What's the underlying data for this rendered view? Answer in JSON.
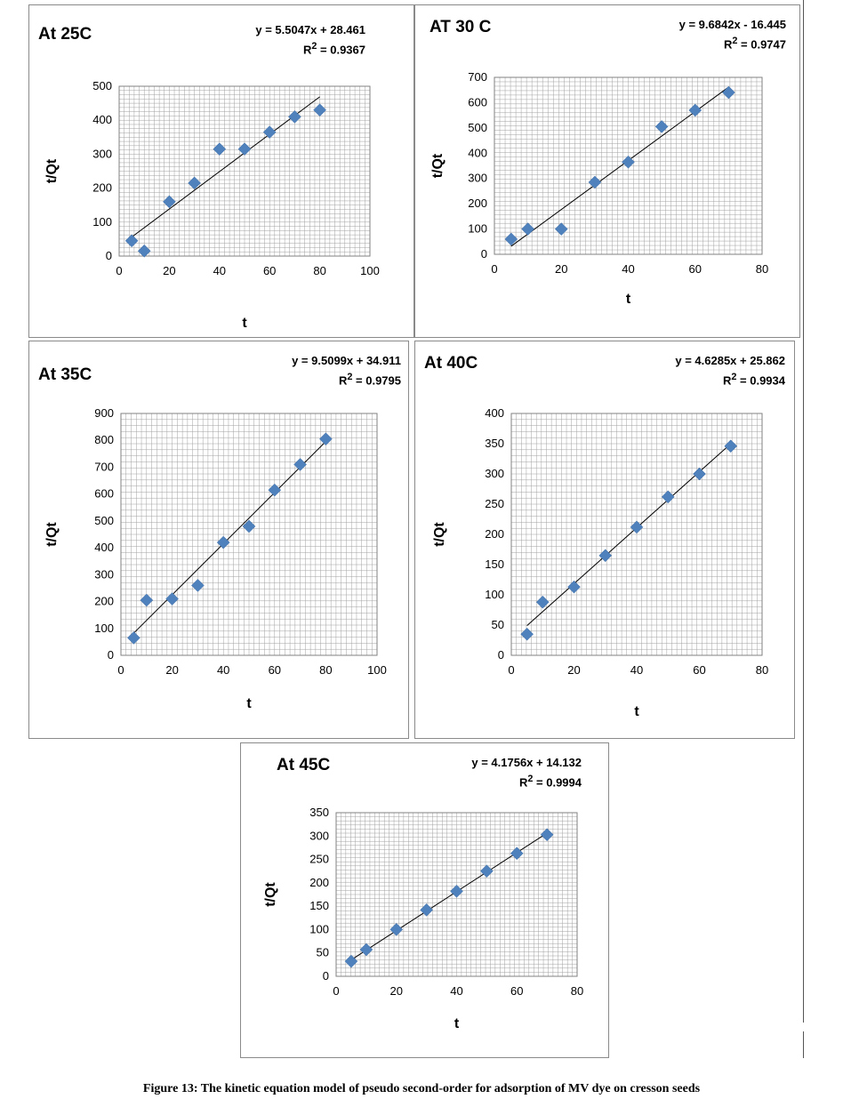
{
  "caption": "Figure 13: The kinetic equation model of pseudo second-order for adsorption of MV dye on cresson seeds",
  "colors": {
    "marker": "#4f81bd",
    "trendline": "#000000",
    "grid": "#a0a0a0"
  },
  "chart_data": [
    {
      "type": "scatter",
      "title": "At 25C",
      "equation": "y = 5.5047x + 28.461",
      "r2_prefix": "R",
      "r2_value": " = 0.9367",
      "xlabel": "t",
      "ylabel": "t/Qt",
      "xlim": [
        0,
        100
      ],
      "ylim": [
        0,
        500
      ],
      "xticks": [
        "0",
        "20",
        "40",
        "60",
        "80",
        "100"
      ],
      "yticks": [
        "0",
        "100",
        "200",
        "300",
        "400",
        "500"
      ],
      "x": [
        5,
        10,
        20,
        30,
        40,
        50,
        60,
        70,
        80
      ],
      "y": [
        45,
        15,
        160,
        215,
        315,
        315,
        365,
        410,
        430
      ],
      "trendline": {
        "slope": 5.5047,
        "intercept": 28.461,
        "x_from": 5,
        "x_to": 80
      },
      "grid": true
    },
    {
      "type": "scatter",
      "title": "AT 30 C",
      "equation": "y = 9.6842x - 16.445",
      "r2_prefix": "R",
      "r2_value": " = 0.9747",
      "xlabel": "t",
      "ylabel": "t/Qt",
      "xlim": [
        0,
        80
      ],
      "ylim": [
        0,
        700
      ],
      "xticks": [
        "0",
        "20",
        "40",
        "60",
        "80"
      ],
      "yticks": [
        "0",
        "100",
        "200",
        "300",
        "400",
        "500",
        "600",
        "700"
      ],
      "x": [
        5,
        10,
        20,
        30,
        40,
        50,
        60,
        70
      ],
      "y": [
        60,
        100,
        100,
        285,
        365,
        505,
        570,
        640
      ],
      "trendline": {
        "slope": 9.6842,
        "intercept": -16.445,
        "x_from": 5,
        "x_to": 70
      },
      "grid": true
    },
    {
      "type": "scatter",
      "title": "At 35C",
      "equation": "y = 9.5099x + 34.911",
      "r2_prefix": "R",
      "r2_value": " = 0.9795",
      "xlabel": "t",
      "ylabel": "t/Qt",
      "xlim": [
        0,
        100
      ],
      "ylim": [
        0,
        900
      ],
      "xticks": [
        "0",
        "20",
        "40",
        "60",
        "80",
        "100"
      ],
      "yticks": [
        "0",
        "100",
        "200",
        "300",
        "400",
        "500",
        "600",
        "700",
        "800",
        "900"
      ],
      "x": [
        5,
        10,
        20,
        30,
        40,
        50,
        60,
        70,
        80
      ],
      "y": [
        65,
        205,
        210,
        260,
        420,
        480,
        615,
        710,
        805
      ],
      "trendline": {
        "slope": 9.5099,
        "intercept": 34.911,
        "x_from": 5,
        "x_to": 80
      },
      "grid": true
    },
    {
      "type": "scatter",
      "title": "At 40C",
      "equation": "y = 4.6285x + 25.862",
      "r2_prefix": "R",
      "r2_value": " = 0.9934",
      "xlabel": "t",
      "ylabel": "t/Qt",
      "xlim": [
        0,
        80
      ],
      "ylim": [
        0,
        400
      ],
      "xticks": [
        "0",
        "20",
        "40",
        "60",
        "80"
      ],
      "yticks": [
        "0",
        "50",
        "100",
        "150",
        "200",
        "250",
        "300",
        "350",
        "400"
      ],
      "x": [
        5,
        10,
        20,
        30,
        40,
        50,
        60,
        70
      ],
      "y": [
        35,
        88,
        113,
        165,
        212,
        262,
        300,
        346
      ],
      "trendline": {
        "slope": 4.6285,
        "intercept": 25.862,
        "x_from": 5,
        "x_to": 70
      },
      "grid": true
    },
    {
      "type": "scatter",
      "title": "At 45C",
      "equation": "y = 4.1756x + 14.132",
      "r2_prefix": "R",
      "r2_value": " = 0.9994",
      "xlabel": "t",
      "ylabel": "t/Qt",
      "xlim": [
        0,
        80
      ],
      "ylim": [
        0,
        350
      ],
      "xticks": [
        "0",
        "20",
        "40",
        "60",
        "80"
      ],
      "yticks": [
        "0",
        "50",
        "100",
        "150",
        "200",
        "250",
        "300",
        "350"
      ],
      "x": [
        5,
        10,
        20,
        30,
        40,
        50,
        60,
        70
      ],
      "y": [
        32,
        57,
        100,
        142,
        182,
        225,
        263,
        303
      ],
      "trendline": {
        "slope": 4.1756,
        "intercept": 14.132,
        "x_from": 5,
        "x_to": 70
      },
      "grid": true
    }
  ]
}
